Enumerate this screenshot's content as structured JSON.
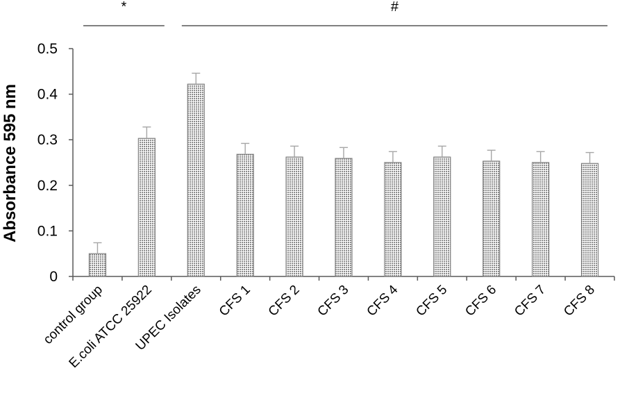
{
  "chart_data": {
    "type": "bar",
    "title": "",
    "xlabel": "",
    "ylabel": "Absorbance 595 nm",
    "ylim": [
      0,
      0.5
    ],
    "yticks": [
      "0",
      "0.1",
      "0.2",
      "0.3",
      "0.4",
      "0.5"
    ],
    "grid": false,
    "legend": "none",
    "categories": [
      "control group",
      "E.coli ATCC 25922",
      "UPEC Isolates",
      "CFS 1",
      "CFS 2",
      "CFS 3",
      "CFS 4",
      "CFS 5",
      "CFS 6",
      "CFS 7",
      "CFS 8"
    ],
    "values": [
      0.05,
      0.303,
      0.422,
      0.268,
      0.262,
      0.259,
      0.25,
      0.262,
      0.253,
      0.25,
      0.248
    ],
    "errors": [
      0.024,
      0.025,
      0.024,
      0.024,
      0.024,
      0.024,
      0.024,
      0.024,
      0.024,
      0.024,
      0.024
    ],
    "bar_color": "#d4d4d4",
    "significance": [
      {
        "symbol": "*",
        "from": "control group",
        "to": "E.coli ATCC 25922"
      },
      {
        "symbol": "#",
        "from": "UPEC Isolates",
        "to": "CFS 8"
      }
    ]
  }
}
